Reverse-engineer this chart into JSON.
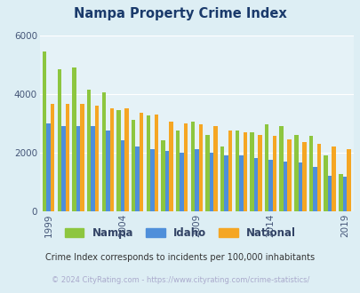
{
  "title": "Nampa Property Crime Index",
  "title_color": "#1a3a6b",
  "subtitle": "Crime Index corresponds to incidents per 100,000 inhabitants",
  "footer": "© 2024 CityRating.com - https://www.cityrating.com/crime-statistics/",
  "years": [
    1999,
    2000,
    2001,
    2002,
    2003,
    2004,
    2005,
    2006,
    2007,
    2008,
    2009,
    2010,
    2011,
    2012,
    2013,
    2014,
    2015,
    2016,
    2017,
    2018,
    2019
  ],
  "nampa": [
    5450,
    4850,
    4900,
    4150,
    4050,
    3450,
    3100,
    3250,
    2400,
    2750,
    3050,
    2600,
    2200,
    2750,
    2700,
    2950,
    2900,
    2600,
    2550,
    1900,
    1250
  ],
  "idaho": [
    3000,
    2900,
    2900,
    2900,
    2750,
    2400,
    2200,
    2100,
    2050,
    2000,
    2100,
    2000,
    1900,
    1900,
    1800,
    1750,
    1700,
    1650,
    1500,
    1200,
    1180
  ],
  "national": [
    3650,
    3650,
    3650,
    3600,
    3500,
    3500,
    3350,
    3300,
    3050,
    3000,
    2950,
    2900,
    2750,
    2700,
    2600,
    2550,
    2450,
    2350,
    2300,
    2200,
    2100
  ],
  "nampa_color": "#8dc63f",
  "idaho_color": "#4f8fda",
  "national_color": "#f5a623",
  "bg_color": "#ddeef4",
  "plot_bg": "#e5f2f7",
  "ylim": [
    0,
    6000
  ],
  "yticks": [
    0,
    2000,
    4000,
    6000
  ],
  "xtick_years": [
    1999,
    2004,
    2009,
    2014,
    2019
  ],
  "legend_labels": [
    "Nampa",
    "Idaho",
    "National"
  ],
  "grid_color": "#ffffff",
  "bar_width": 0.27
}
